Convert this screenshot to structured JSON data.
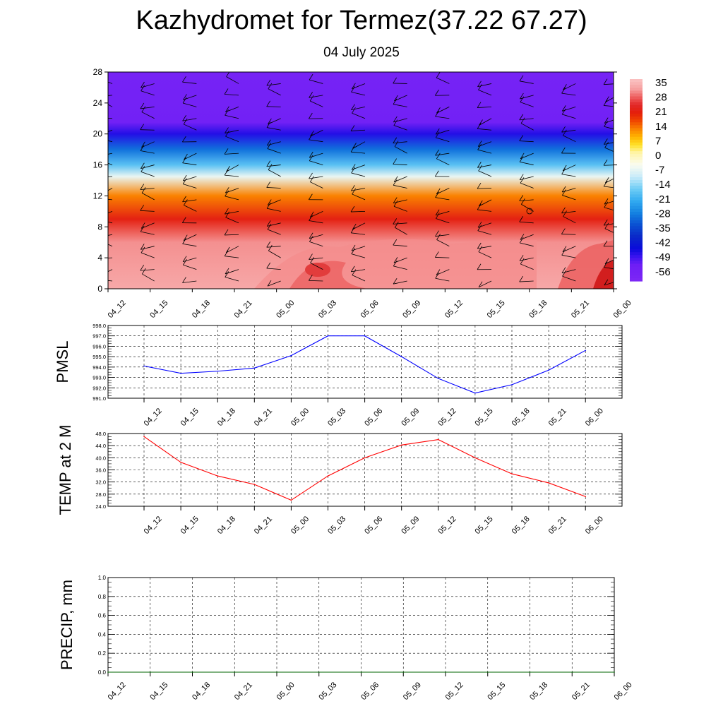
{
  "title": "Kazhydromet for Termez(37.22 67.27)",
  "subtitle": "04 July 2025",
  "chart_data": [
    {
      "type": "heatmap",
      "title": "",
      "xlabel": "",
      "ylabel": "",
      "categories": [
        "04_12",
        "04_15",
        "04_18",
        "04_21",
        "05_00",
        "05_03",
        "05_06",
        "05_09",
        "05_12",
        "05_15",
        "05_18",
        "05_21",
        "06_00"
      ],
      "ylim": [
        0,
        28
      ],
      "y_ticks": [
        "0",
        "4",
        "8",
        "12",
        "16",
        "20",
        "24",
        "28"
      ],
      "colorbar_labels": [
        "35",
        "28",
        "21",
        "14",
        "7",
        "0",
        "-7",
        "-14",
        "-21",
        "-28",
        "-35",
        "-42",
        "-49",
        "-56"
      ],
      "profile_values": [
        {
          "level": 0,
          "value": 33
        },
        {
          "level": 6,
          "value": 31
        },
        {
          "level": 9,
          "value": 21
        },
        {
          "level": 12,
          "value": 12
        },
        {
          "level": 14.5,
          "value": -8
        },
        {
          "level": 16,
          "value": -20
        },
        {
          "level": 18,
          "value": -32
        },
        {
          "level": 20,
          "value": -50
        },
        {
          "level": 21.5,
          "value": -58
        },
        {
          "level": 28,
          "value": -60
        }
      ],
      "wind_barbs": true
    },
    {
      "type": "line",
      "title": "",
      "xlabel": "",
      "ylabel": "PMSL",
      "categories": [
        "04_12",
        "04_15",
        "04_18",
        "04_21",
        "05_00",
        "05_03",
        "05_06",
        "05_09",
        "05_12",
        "05_15",
        "05_18",
        "05_21",
        "06_00"
      ],
      "series": [
        {
          "values": [
            994.1,
            993.4,
            993.6,
            993.9,
            995.1,
            997.0,
            997.0,
            995.0,
            992.9,
            991.5,
            992.3,
            993.7,
            995.6
          ]
        }
      ],
      "color": "#0000ff",
      "ylim": [
        991.0,
        998.0
      ],
      "y_ticks": [
        "991.0",
        "992.0",
        "993.0",
        "994.0",
        "995.0",
        "996.0",
        "997.0",
        "998.0"
      ],
      "grid": true
    },
    {
      "type": "line",
      "title": "",
      "xlabel": "",
      "ylabel": "TEMP at 2 M",
      "categories": [
        "04_12",
        "04_15",
        "04_18",
        "04_21",
        "05_00",
        "05_03",
        "05_06",
        "05_09",
        "05_12",
        "05_15",
        "05_18",
        "05_21",
        "06_00"
      ],
      "series": [
        {
          "values": [
            47.0,
            38.5,
            34.0,
            31.2,
            26.0,
            34.0,
            40.0,
            44.2,
            46.0,
            40.0,
            34.7,
            31.7,
            27.2
          ]
        }
      ],
      "color": "#ff0000",
      "ylim": [
        24.0,
        48.0
      ],
      "y_ticks": [
        "24.0",
        "28.0",
        "32.0",
        "36.0",
        "40.0",
        "44.0",
        "48.0"
      ],
      "grid": true
    },
    {
      "type": "line",
      "title": "",
      "xlabel": "",
      "ylabel": "PRECIP, mm",
      "categories": [
        "04_12",
        "04_15",
        "04_18",
        "04_21",
        "05_00",
        "05_03",
        "05_06",
        "05_09",
        "05_12",
        "05_15",
        "05_18",
        "05_21",
        "06_00"
      ],
      "series": [
        {
          "values": [
            0,
            0,
            0,
            0,
            0,
            0,
            0,
            0,
            0,
            0,
            0,
            0,
            0
          ]
        }
      ],
      "color": "#006400",
      "ylim": [
        0.0,
        1.0
      ],
      "y_ticks": [
        "0.0",
        "0.2",
        "0.4",
        "0.6",
        "0.8",
        "1.0"
      ],
      "grid": true
    }
  ]
}
